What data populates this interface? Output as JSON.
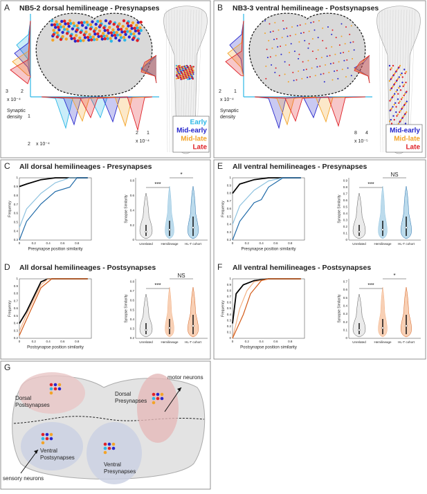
{
  "A": {
    "letter": "A",
    "title": "NB5-2 dorsal hemilineage - Presynapses",
    "legend": [
      "Early",
      "Mid-early",
      "Mid-late",
      "Late"
    ],
    "left_ticks": [
      "3",
      "2"
    ],
    "left_exp": "x 10⁻⁴",
    "ylabel": [
      "Synaptic",
      "density"
    ],
    "bottom_ticks": [
      "1",
      "2"
    ],
    "bottom_exp": "x 10⁻⁴",
    "right_ticks": [
      "2",
      "1"
    ],
    "right_exp": "x 10⁻⁴"
  },
  "B": {
    "letter": "B",
    "title": "NB3-3 ventral hemilineage - Postsynapses",
    "legend": [
      "Mid-early",
      "Mid-late",
      "Late"
    ],
    "left_ticks": [
      "2",
      "1"
    ],
    "left_exp": "x 10⁻⁴",
    "ylabel": [
      "Synaptic",
      "density"
    ],
    "right_ticks": [
      "8",
      "4"
    ],
    "right_exp": "x 10⁻⁵"
  },
  "panels": [
    {
      "letter": "C",
      "title": "All dorsal hemilineages - Presynapses",
      "ylabel": "Frequency",
      "xlabel": "Presynapse position similarity",
      "yticks": [
        "0.3",
        "0.4",
        "0.5",
        "0.6",
        "0.7",
        "0.8",
        "0.9",
        "1"
      ],
      "xticks": [
        "0",
        "0.2",
        "0.4",
        "0.6",
        "0.8"
      ],
      "vlabel": "Synapse Similarity",
      "vticks": [
        "0",
        "0.2",
        "0.4",
        "0.6",
        "0.8"
      ],
      "categories": [
        "Unrelated",
        "Hemilineage",
        "HL-T cohort"
      ],
      "sig": [
        "***",
        "*"
      ]
    },
    {
      "letter": "D",
      "title": "All dorsal hemilineages - Postsynapses",
      "ylabel": "Frequency",
      "xlabel": "Postsynapse position similarity",
      "yticks": [
        "0.2",
        "0.3",
        "0.4",
        "0.5",
        "0.6",
        "0.7",
        "0.8",
        "0.9",
        "1"
      ],
      "xticks": [
        "0",
        "0.2",
        "0.4",
        "0.6",
        "0.8"
      ],
      "vlabel": "Synapse Similarity",
      "vticks": [
        "0.2",
        "0.3",
        "0.4",
        "0.5",
        "0.6",
        "0.7",
        "0.8"
      ],
      "categories": [
        "Unrelated",
        "Hemilineage",
        "HL-T cohort"
      ],
      "sig": [
        "***",
        "NS"
      ]
    },
    {
      "letter": "E",
      "title": "All ventral hemilineages - Presynapses",
      "ylabel": "Frequency",
      "xlabel": "Presynapse position similarity",
      "yticks": [
        "0.2",
        "0.3",
        "0.4",
        "0.5",
        "0.6",
        "0.7",
        "0.8",
        "0.9",
        "1"
      ],
      "xticks": [
        "0",
        "0.2",
        "0.4",
        "0.6",
        "0.8"
      ],
      "vlabel": "Synapse Similarity",
      "vticks": [
        "0",
        "0.1",
        "0.2",
        "0.3",
        "0.4",
        "0.5",
        "0.6",
        "0.7",
        "0.8",
        "0.9"
      ],
      "categories": [
        "Unrelated",
        "Hemilineage",
        "HL-T cohort"
      ],
      "sig": [
        "***",
        "NS"
      ]
    },
    {
      "letter": "F",
      "title": "All ventral hemilineages - Postsynapses",
      "ylabel": "Frequency",
      "xlabel": "Postsynapse position similarity",
      "yticks": [
        "0",
        "0.1",
        "0.2",
        "0.3",
        "0.4",
        "0.5",
        "0.6",
        "0.7",
        "0.8",
        "0.9",
        "1"
      ],
      "xticks": [
        "0",
        "0.2",
        "0.4",
        "0.6",
        "0.8"
      ],
      "vlabel": "Synapse Similarity",
      "vticks": [
        "0",
        "0.1",
        "0.2",
        "0.3",
        "0.4",
        "0.5",
        "0.6",
        "0.7"
      ],
      "categories": [
        "Unrelated",
        "Hemilineage",
        "HL-T cohort"
      ],
      "sig": [
        "***",
        "*"
      ]
    }
  ],
  "G": {
    "letter": "G",
    "dorsal_post": [
      "Dorsal",
      "Postsynapses"
    ],
    "dorsal_pre": [
      "Dorsal",
      "Presynapses"
    ],
    "ventral_post": [
      "Ventral",
      "Postsynapses"
    ],
    "ventral_pre": [
      "Ventral",
      "Presynapses"
    ],
    "motor": "motor neurons",
    "sensory": "sensory neurons"
  }
}
